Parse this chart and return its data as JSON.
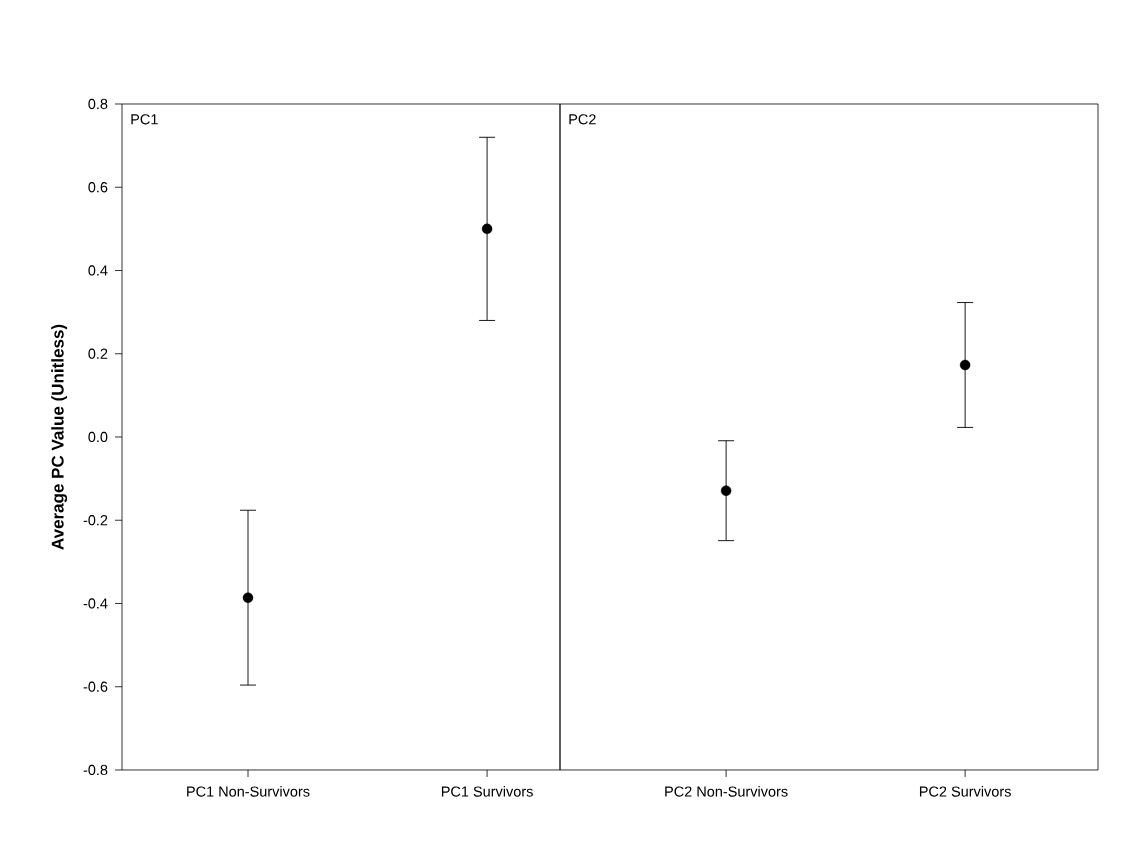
{
  "chart_data": [
    {
      "type": "scatter",
      "ylabel": "Average PC Value (Unitless)",
      "categories": [
        "PC1 Non-Survivors",
        "PC1 Survivors"
      ],
      "values": [
        -0.386,
        0.5
      ],
      "errors": [
        0.21,
        0.22
      ],
      "color": "#000000",
      "ylim": [
        -0.8,
        0.8
      ],
      "yticks": [
        {
          "value": -0.8,
          "label": "-0.8"
        },
        {
          "value": -0.6,
          "label": "-0.6"
        },
        {
          "value": -0.4,
          "label": "-0.4"
        },
        {
          "value": -0.2,
          "label": "-0.2"
        },
        {
          "value": 0.0,
          "label": "0.0"
        },
        {
          "value": 0.2,
          "label": "0.2"
        },
        {
          "value": 0.4,
          "label": "0.4"
        },
        {
          "value": 0.6,
          "label": "0.6"
        },
        {
          "value": 0.8,
          "label": "0.8"
        }
      ],
      "annotations": [
        "PC1"
      ]
    },
    {
      "type": "scatter",
      "categories": [
        "PC2 Non-Survivors",
        "PC2 Survivors"
      ],
      "values": [
        -0.129,
        0.173
      ],
      "errors": [
        0.12,
        0.15
      ],
      "color": "#000000",
      "ylim": [
        -0.8,
        0.8
      ],
      "tick_labels": "x",
      "annotations": [
        "PC2"
      ]
    }
  ]
}
